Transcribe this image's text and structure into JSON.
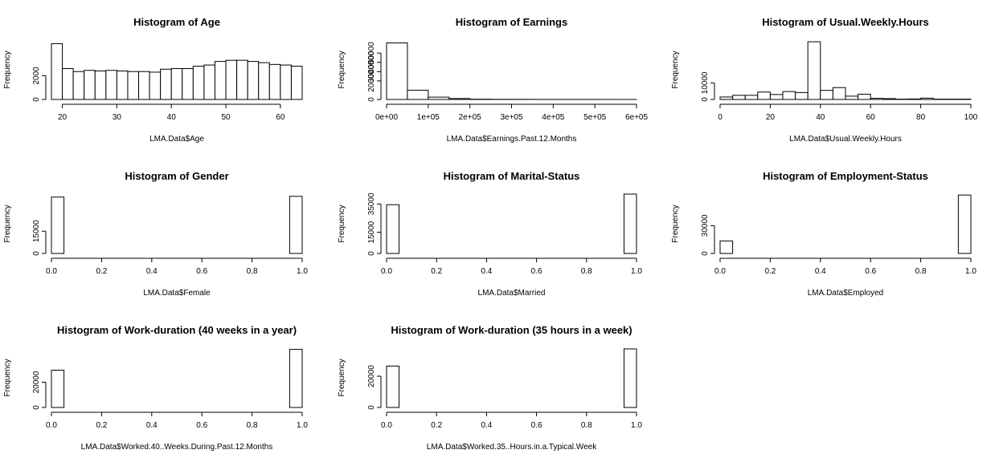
{
  "chart_data": [
    {
      "type": "bar",
      "title": "Histogram of Age",
      "xlabel": "LMA.Data$Age",
      "ylabel": "Frequency",
      "bin_edges": [
        18,
        20,
        22,
        24,
        26,
        28,
        30,
        32,
        34,
        36,
        38,
        40,
        42,
        44,
        46,
        48,
        50,
        52,
        54,
        56,
        58,
        60,
        62,
        64
      ],
      "values": [
        4700,
        2600,
        2350,
        2450,
        2400,
        2450,
        2400,
        2350,
        2350,
        2300,
        2550,
        2600,
        2600,
        2800,
        2900,
        3200,
        3300,
        3300,
        3200,
        3100,
        2950,
        2900,
        2800
      ],
      "xticks": [
        20,
        30,
        40,
        50,
        60
      ],
      "xtick_labels": [
        "20",
        "30",
        "40",
        "50",
        "60"
      ],
      "yticks": [
        0,
        2000
      ],
      "ytick_labels": [
        "0",
        "2000"
      ],
      "ylim": [
        0,
        5000
      ]
    },
    {
      "type": "bar",
      "title": "Histogram of Earnings",
      "xlabel": "LMA.Data$Earnings.Past.12.Months",
      "ylabel": "Frequency",
      "bin_edges": [
        0,
        50000,
        100000,
        150000,
        200000,
        250000,
        300000,
        350000,
        400000,
        450000,
        500000,
        550000,
        600000
      ],
      "values": [
        61000,
        10000,
        2500,
        1000,
        300,
        150,
        100,
        60,
        40,
        30,
        20,
        10
      ],
      "xticks": [
        0,
        100000,
        200000,
        300000,
        400000,
        500000,
        600000
      ],
      "xtick_labels": [
        "0e+00",
        "1e+05",
        "2e+05",
        "3e+05",
        "4e+05",
        "5e+05",
        "6e+05"
      ],
      "yticks": [
        0,
        20000,
        30000,
        40000,
        50000
      ],
      "ytick_labels": [
        "0",
        "20000",
        "30000",
        "40000",
        "50000"
      ],
      "ylim": [
        0,
        64000
      ]
    },
    {
      "type": "bar",
      "title": "Histogram of Usual.Weekly.Hours",
      "xlabel": "LMA.Data$Usual.Weekly.Hours",
      "ylabel": "Frequency",
      "bin_edges": [
        0,
        5,
        10,
        15,
        20,
        25,
        30,
        35,
        40,
        45,
        50,
        55,
        60,
        65,
        70,
        75,
        80,
        85,
        90,
        95,
        100
      ],
      "values": [
        1500,
        2500,
        2500,
        4500,
        3000,
        4800,
        4200,
        35000,
        5500,
        7200,
        2000,
        3200,
        700,
        500,
        200,
        300,
        800,
        200,
        200,
        200
      ],
      "xticks": [
        0,
        20,
        40,
        60,
        80,
        100
      ],
      "xtick_labels": [
        "0",
        "20",
        "40",
        "60",
        "80",
        "100"
      ],
      "yticks": [
        0,
        10000
      ],
      "ytick_labels": [
        "0",
        "10000"
      ],
      "ylim": [
        0,
        36000
      ]
    },
    {
      "type": "bar",
      "title": "Histogram of Gender",
      "xlabel": "LMA.Data$Female",
      "ylabel": "Frequency",
      "bin_edges": [
        0,
        0.05,
        0.1,
        0.15,
        0.2,
        0.25,
        0.3,
        0.35,
        0.4,
        0.45,
        0.5,
        0.55,
        0.6,
        0.65,
        0.7,
        0.75,
        0.8,
        0.85,
        0.9,
        0.95,
        1
      ],
      "values": [
        38000,
        0,
        0,
        0,
        0,
        0,
        0,
        0,
        0,
        0,
        0,
        0,
        0,
        0,
        0,
        0,
        0,
        0,
        0,
        38500
      ],
      "xticks": [
        0,
        0.2,
        0.4,
        0.6,
        0.8,
        1
      ],
      "xtick_labels": [
        "0.0",
        "0.2",
        "0.4",
        "0.6",
        "0.8",
        "1.0"
      ],
      "yticks": [
        0,
        15000
      ],
      "ytick_labels": [
        "0",
        "15000"
      ],
      "ylim": [
        0,
        40000
      ]
    },
    {
      "type": "bar",
      "title": "Histogram of Marital-Status",
      "xlabel": "LMA.Data$Married",
      "ylabel": "Frequency",
      "bin_edges": [
        0,
        0.05,
        0.1,
        0.15,
        0.2,
        0.25,
        0.3,
        0.35,
        0.4,
        0.45,
        0.5,
        0.55,
        0.6,
        0.65,
        0.7,
        0.75,
        0.8,
        0.85,
        0.9,
        0.95,
        1
      ],
      "values": [
        34500,
        0,
        0,
        0,
        0,
        0,
        0,
        0,
        0,
        0,
        0,
        0,
        0,
        0,
        0,
        0,
        0,
        0,
        0,
        42000
      ],
      "xticks": [
        0,
        0.2,
        0.4,
        0.6,
        0.8,
        1
      ],
      "xtick_labels": [
        "0.0",
        "0.2",
        "0.4",
        "0.6",
        "0.8",
        "1.0"
      ],
      "yticks": [
        0,
        15000,
        35000
      ],
      "ytick_labels": [
        "0",
        "15000",
        "35000"
      ],
      "ylim": [
        0,
        42000
      ]
    },
    {
      "type": "bar",
      "title": "Histogram of Employment-Status",
      "xlabel": "LMA.Data$Employed",
      "ylabel": "Frequency",
      "bin_edges": [
        0,
        0.05,
        0.1,
        0.15,
        0.2,
        0.25,
        0.3,
        0.35,
        0.4,
        0.45,
        0.5,
        0.55,
        0.6,
        0.65,
        0.7,
        0.75,
        0.8,
        0.85,
        0.9,
        0.95,
        1
      ],
      "values": [
        13500,
        0,
        0,
        0,
        0,
        0,
        0,
        0,
        0,
        0,
        0,
        0,
        0,
        0,
        0,
        0,
        0,
        0,
        0,
        63000
      ],
      "xticks": [
        0,
        0.2,
        0.4,
        0.6,
        0.8,
        1
      ],
      "xtick_labels": [
        "0.0",
        "0.2",
        "0.4",
        "0.6",
        "0.8",
        "1.0"
      ],
      "yticks": [
        0,
        30000
      ],
      "ytick_labels": [
        "0",
        "30000"
      ],
      "ylim": [
        0,
        64000
      ]
    },
    {
      "type": "bar",
      "title": "Histogram of Work-duration (40 weeks in a year)",
      "xlabel": "LMA.Data$Worked.40..Weeks.During.Past.12.Months",
      "ylabel": "Frequency",
      "bin_edges": [
        0,
        0.05,
        0.1,
        0.15,
        0.2,
        0.25,
        0.3,
        0.35,
        0.4,
        0.45,
        0.5,
        0.55,
        0.6,
        0.65,
        0.7,
        0.75,
        0.8,
        0.85,
        0.9,
        0.95,
        1
      ],
      "values": [
        29500,
        0,
        0,
        0,
        0,
        0,
        0,
        0,
        0,
        0,
        0,
        0,
        0,
        0,
        0,
        0,
        0,
        0,
        0,
        46000
      ],
      "xticks": [
        0,
        0.2,
        0.4,
        0.6,
        0.8,
        1
      ],
      "xtick_labels": [
        "0.0",
        "0.2",
        "0.4",
        "0.6",
        "0.8",
        "1.0"
      ],
      "yticks": [
        0,
        20000
      ],
      "ytick_labels": [
        "0",
        "20000"
      ],
      "ylim": [
        0,
        47000
      ]
    },
    {
      "type": "bar",
      "title": "Histogram of Work-duration (35 hours in a week)",
      "xlabel": "LMA.Data$Worked.35..Hours.in.a.Typical.Week",
      "ylabel": "Frequency",
      "bin_edges": [
        0,
        0.05,
        0.1,
        0.15,
        0.2,
        0.25,
        0.3,
        0.35,
        0.4,
        0.45,
        0.5,
        0.55,
        0.6,
        0.65,
        0.7,
        0.75,
        0.8,
        0.85,
        0.9,
        0.95,
        1
      ],
      "values": [
        26500,
        0,
        0,
        0,
        0,
        0,
        0,
        0,
        0,
        0,
        0,
        0,
        0,
        0,
        0,
        0,
        0,
        0,
        0,
        37500
      ],
      "xticks": [
        0,
        0.2,
        0.4,
        0.6,
        0.8,
        1
      ],
      "xtick_labels": [
        "0.0",
        "0.2",
        "0.4",
        "0.6",
        "0.8",
        "1.0"
      ],
      "yticks": [
        0,
        20000
      ],
      "ytick_labels": [
        "0",
        "20000"
      ],
      "ylim": [
        0,
        38000
      ]
    }
  ]
}
